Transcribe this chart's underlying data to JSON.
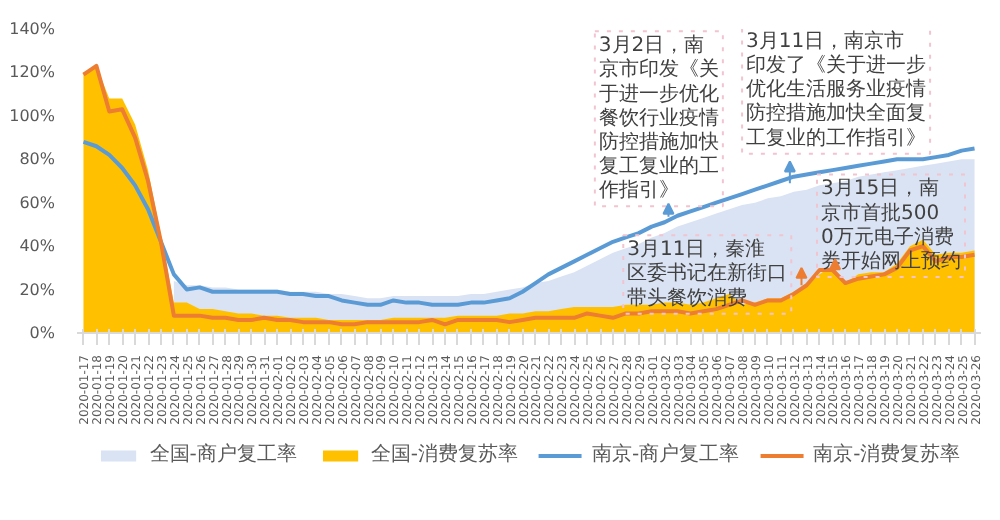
{
  "chart_data": {
    "type": "area",
    "categories": [
      "2020-01-17",
      "2020-01-18",
      "2020-01-19",
      "2020-01-20",
      "2020-01-21",
      "2020-01-22",
      "2020-01-23",
      "2020-01-24",
      "2020-01-25",
      "2020-01-26",
      "2020-01-27",
      "2020-01-28",
      "2020-01-29",
      "2020-01-30",
      "2020-01-31",
      "2020-02-01",
      "2020-02-02",
      "2020-02-03",
      "2020-02-04",
      "2020-02-05",
      "2020-02-06",
      "2020-02-07",
      "2020-02-08",
      "2020-02-09",
      "2020-02-10",
      "2020-02-11",
      "2020-02-12",
      "2020-02-13",
      "2020-02-14",
      "2020-02-15",
      "2020-02-16",
      "2020-02-17",
      "2020-02-18",
      "2020-02-19",
      "2020-02-20",
      "2020-02-21",
      "2020-02-22",
      "2020-02-23",
      "2020-02-24",
      "2020-02-25",
      "2020-02-26",
      "2020-02-27",
      "2020-02-28",
      "2020-02-29",
      "2020-03-01",
      "2020-03-02",
      "2020-03-03",
      "2020-03-04",
      "2020-03-05",
      "2020-03-06",
      "2020-03-07",
      "2020-03-08",
      "2020-03-09",
      "2020-03-10",
      "2020-03-11",
      "2020-03-12",
      "2020-03-13",
      "2020-03-14",
      "2020-03-15",
      "2020-03-16",
      "2020-03-17",
      "2020-03-18",
      "2020-03-19",
      "2020-03-20",
      "2020-03-21",
      "2020-03-22",
      "2020-03-23",
      "2020-03-24",
      "2020-03-25",
      "2020-03-26"
    ],
    "series": [
      {
        "name": "全国-商户复工率",
        "color": "#dae3f3",
        "values": [
          null,
          null,
          null,
          null,
          null,
          null,
          null,
          24,
          22,
          22,
          21,
          21,
          20,
          20,
          20,
          20,
          19,
          19,
          19,
          18,
          18,
          17,
          16,
          16,
          17,
          17,
          17,
          17,
          17,
          17,
          18,
          18,
          19,
          20,
          21,
          23,
          24,
          26,
          28,
          31,
          34,
          37,
          39,
          41,
          44,
          46,
          49,
          51,
          53,
          55,
          57,
          59,
          60,
          62,
          63,
          65,
          66,
          68,
          69,
          70,
          72,
          73,
          74,
          75,
          76,
          77,
          78,
          79,
          80,
          80
        ]
      },
      {
        "name": "全国-消费复苏率",
        "color": "#ffc000",
        "values": [
          120,
          123,
          108,
          108,
          96,
          75,
          45,
          14,
          14,
          11,
          11,
          10,
          9,
          9,
          8,
          8,
          7,
          7,
          7,
          6,
          6,
          6,
          6,
          6,
          7,
          7,
          7,
          7,
          7,
          8,
          8,
          8,
          8,
          9,
          9,
          10,
          10,
          11,
          12,
          12,
          12,
          12,
          13,
          13,
          13,
          14,
          14,
          13,
          14,
          16,
          18,
          13,
          14,
          16,
          16,
          19,
          22,
          27,
          31,
          23,
          27,
          28,
          28,
          32,
          40,
          43,
          36,
          37,
          37,
          38
        ]
      },
      {
        "name": "南京-商户复工率",
        "type": "line",
        "color": "#5b9bd5",
        "values": [
          88,
          86,
          82,
          76,
          68,
          57,
          42,
          27,
          20,
          21,
          19,
          19,
          19,
          19,
          19,
          19,
          18,
          18,
          17,
          17,
          15,
          14,
          13,
          13,
          15,
          14,
          14,
          13,
          13,
          13,
          14,
          14,
          15,
          16,
          19,
          23,
          27,
          30,
          33,
          36,
          39,
          42,
          44,
          46,
          49,
          51,
          54,
          56,
          58,
          60,
          62,
          64,
          66,
          68,
          70,
          72,
          73,
          74,
          75,
          76,
          77,
          78,
          79,
          80,
          80,
          80,
          81,
          82,
          84,
          85
        ]
      },
      {
        "name": "南京-消费复苏率",
        "type": "line",
        "color": "#ed7d31",
        "values": [
          119,
          123,
          102,
          103,
          90,
          70,
          42,
          8,
          8,
          8,
          7,
          7,
          6,
          6,
          7,
          6,
          6,
          5,
          5,
          5,
          4,
          4,
          5,
          5,
          5,
          5,
          5,
          6,
          4,
          6,
          6,
          6,
          6,
          5,
          6,
          7,
          7,
          7,
          7,
          9,
          8,
          7,
          9,
          9,
          10,
          10,
          10,
          9,
          10,
          11,
          13,
          15,
          13,
          15,
          15,
          18,
          22,
          29,
          29,
          23,
          25,
          26,
          27,
          30,
          38,
          40,
          33,
          35,
          35,
          36
        ]
      }
    ],
    "ylim": [
      0,
      140
    ],
    "yticks": [
      {
        "value": 0,
        "label": "0%"
      },
      {
        "value": 20,
        "label": "20%"
      },
      {
        "value": 40,
        "label": "40%"
      },
      {
        "value": 60,
        "label": "60%"
      },
      {
        "value": 80,
        "label": "80%"
      },
      {
        "value": 100,
        "label": "100%"
      },
      {
        "value": 120,
        "label": "120%"
      },
      {
        "value": 140,
        "label": "140%"
      }
    ],
    "legend": "bottom",
    "annotations": [
      "3月2日，南京市印发《关于进一步优化餐饮行业疫情防控措施加快复工复业的工作指引》",
      "3月11日，南京市印发了《关于进一步优化生活服务业疫情防控措施加快全面复工复业的工作指引》",
      "3月11日，秦淮区委书记在新街口带头餐饮消费",
      "3月15日，南京市首批5000万元电子消费券开始网上预约"
    ]
  }
}
